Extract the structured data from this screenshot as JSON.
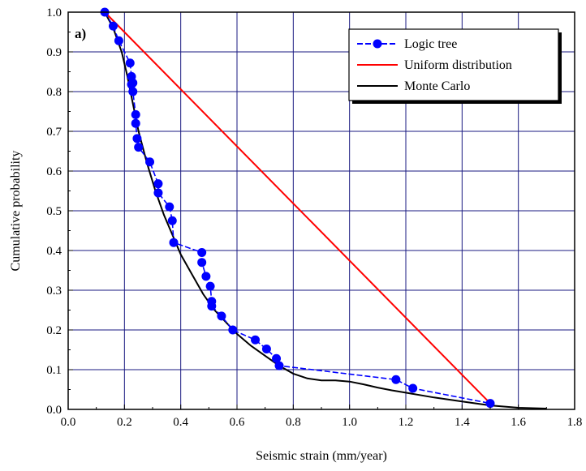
{
  "chart_data": {
    "type": "line",
    "panel_label": "a)",
    "xlabel": "Seismic strain (mm/year)",
    "ylabel": "Cumulative probability",
    "xlim": [
      0.0,
      1.8
    ],
    "ylim": [
      0.0,
      1.0
    ],
    "x_ticks": [
      "0.0",
      "0.2",
      "0.4",
      "0.6",
      "0.8",
      "1.0",
      "1.2",
      "1.4",
      "1.6",
      "1.8"
    ],
    "y_ticks": [
      "0.0",
      "0.1",
      "0.2",
      "0.3",
      "0.4",
      "0.5",
      "0.6",
      "0.7",
      "0.8",
      "0.9",
      "1.0"
    ],
    "grid": true,
    "legend_position": "top-right",
    "series": [
      {
        "name": "Logic tree",
        "color": "#0000ff",
        "style": "dashed-with-circle-markers",
        "x": [
          0.13,
          0.16,
          0.18,
          0.22,
          0.225,
          0.23,
          0.225,
          0.23,
          0.24,
          0.24,
          0.245,
          0.25,
          0.29,
          0.32,
          0.32,
          0.36,
          0.37,
          0.375,
          0.475,
          0.475,
          0.49,
          0.505,
          0.51,
          0.51,
          0.545,
          0.585,
          0.665,
          0.705,
          0.74,
          0.75,
          1.165,
          1.225,
          1.5
        ],
        "y": [
          1.0,
          0.965,
          0.928,
          0.872,
          0.838,
          0.822,
          0.818,
          0.8,
          0.742,
          0.72,
          0.682,
          0.66,
          0.623,
          0.568,
          0.545,
          0.51,
          0.475,
          0.42,
          0.395,
          0.37,
          0.335,
          0.31,
          0.272,
          0.26,
          0.235,
          0.2,
          0.175,
          0.152,
          0.128,
          0.11,
          0.075,
          0.053,
          0.015
        ]
      },
      {
        "name": "Uniform distribution",
        "color": "#ff0000",
        "style": "solid",
        "x": [
          0.13,
          1.5
        ],
        "y": [
          1.0,
          0.015
        ]
      },
      {
        "name": "Monte Carlo",
        "color": "#000000",
        "style": "solid",
        "x": [
          0.13,
          0.16,
          0.19,
          0.21,
          0.23,
          0.25,
          0.28,
          0.31,
          0.34,
          0.37,
          0.4,
          0.44,
          0.48,
          0.52,
          0.56,
          0.6,
          0.65,
          0.7,
          0.75,
          0.8,
          0.85,
          0.9,
          0.95,
          1.0,
          1.05,
          1.1,
          1.15,
          1.2,
          1.3,
          1.4,
          1.5,
          1.6,
          1.7
        ],
        "y": [
          1.0,
          0.96,
          0.9,
          0.84,
          0.77,
          0.7,
          0.62,
          0.55,
          0.49,
          0.44,
          0.39,
          0.34,
          0.29,
          0.25,
          0.22,
          0.19,
          0.16,
          0.135,
          0.11,
          0.09,
          0.078,
          0.073,
          0.073,
          0.07,
          0.063,
          0.055,
          0.048,
          0.042,
          0.03,
          0.02,
          0.01,
          0.004,
          0.002
        ]
      }
    ]
  }
}
